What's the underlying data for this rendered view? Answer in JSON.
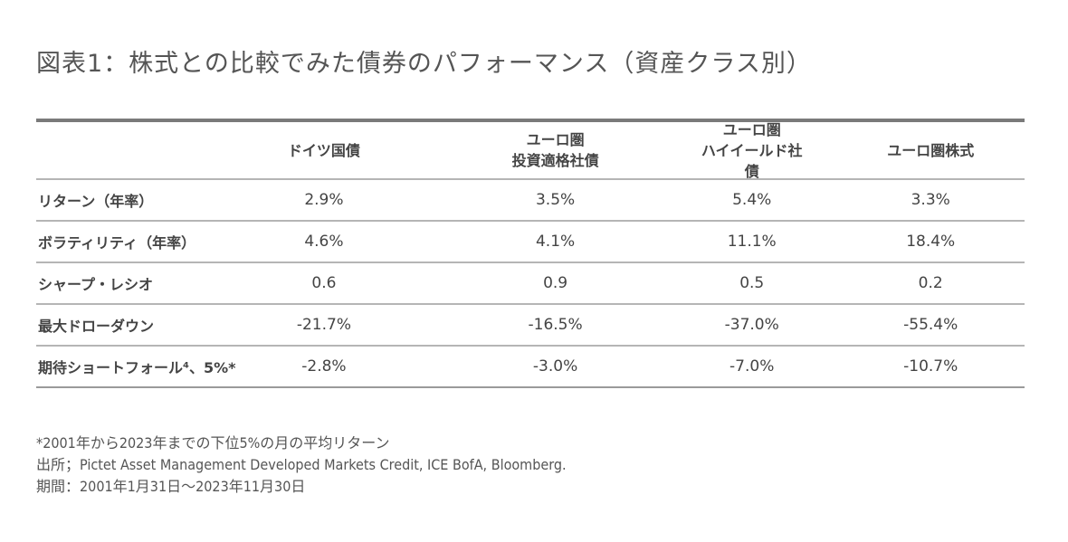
{
  "title": "図表1：株式との比較でみた債券のパフォーマンス（資産クラス別）",
  "columns": [
    "ドイツ国債",
    [
      "ユーロ圏",
      "投資適格社債"
    ],
    [
      "ユーロ圏",
      "ハイイールド社債"
    ],
    "ユーロ圏株式"
  ],
  "rows": [
    {
      "label": "リターン（年率）",
      "values": [
        "2.9%",
        "3.5%",
        "5.4%",
        "3.3%"
      ]
    },
    {
      "label": "ボラティリティ（年率）",
      "values": [
        "4.6%",
        "4.1%",
        "11.1%",
        "18.4%"
      ]
    },
    {
      "label": "シャープ・レシオ",
      "values": [
        "0.6",
        "0.9",
        "0.5",
        "0.2"
      ]
    },
    {
      "label": "最大ドローダウン",
      "values": [
        "-21.7%",
        "-16.5%",
        "-37.0%",
        "-55.4%"
      ]
    },
    {
      "label": "期待ショートフォール⁴、5%*",
      "values": [
        "-2.8%",
        "-3.0%",
        "-7.0%",
        "-10.7%"
      ]
    }
  ],
  "notes": [
    "*2001年から2023年までの下位5%の月の平均リターン",
    "出所；Pictet Asset Management Developed Markets Credit, ICE BofA, Bloomberg.",
    "期間：2001年1月31日～2023年11月30日"
  ]
}
